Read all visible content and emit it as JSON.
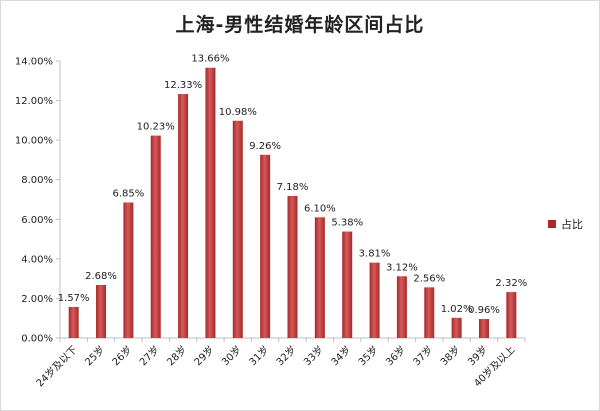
{
  "chart_data": {
    "type": "bar",
    "title": "上海-男性结婚年龄区间占比",
    "categories": [
      "24岁及以下",
      "25岁",
      "26岁",
      "27岁",
      "28岁",
      "29岁",
      "30岁",
      "31岁",
      "32岁",
      "33岁",
      "34岁",
      "35岁",
      "36岁",
      "37岁",
      "38岁",
      "39岁",
      "40岁及以上"
    ],
    "series": [
      {
        "name": "占比",
        "values": [
          1.57,
          2.68,
          6.85,
          10.23,
          12.33,
          13.66,
          10.98,
          9.26,
          7.18,
          6.1,
          5.38,
          3.81,
          3.12,
          2.56,
          1.02,
          0.96,
          2.32
        ],
        "labels": [
          "1.57%",
          "2.68%",
          "6.85%",
          "10.23%",
          "12.33%",
          "13.66%",
          "10.98%",
          "9.26%",
          "7.18%",
          "6.10%",
          "5.38%",
          "3.81%",
          "3.12%",
          "2.56%",
          "1.02%",
          "0.96%",
          "2.32%"
        ]
      }
    ],
    "ylim": [
      0,
      14
    ],
    "yticks": [
      "0.00%",
      "2.00%",
      "4.00%",
      "6.00%",
      "8.00%",
      "10.00%",
      "12.00%",
      "14.00%"
    ],
    "grid": false,
    "legend_position": "right",
    "colors": {
      "bar": "#a8282a",
      "bar_highlight": "#d45a5a",
      "axis": "#bfbfbf"
    }
  }
}
